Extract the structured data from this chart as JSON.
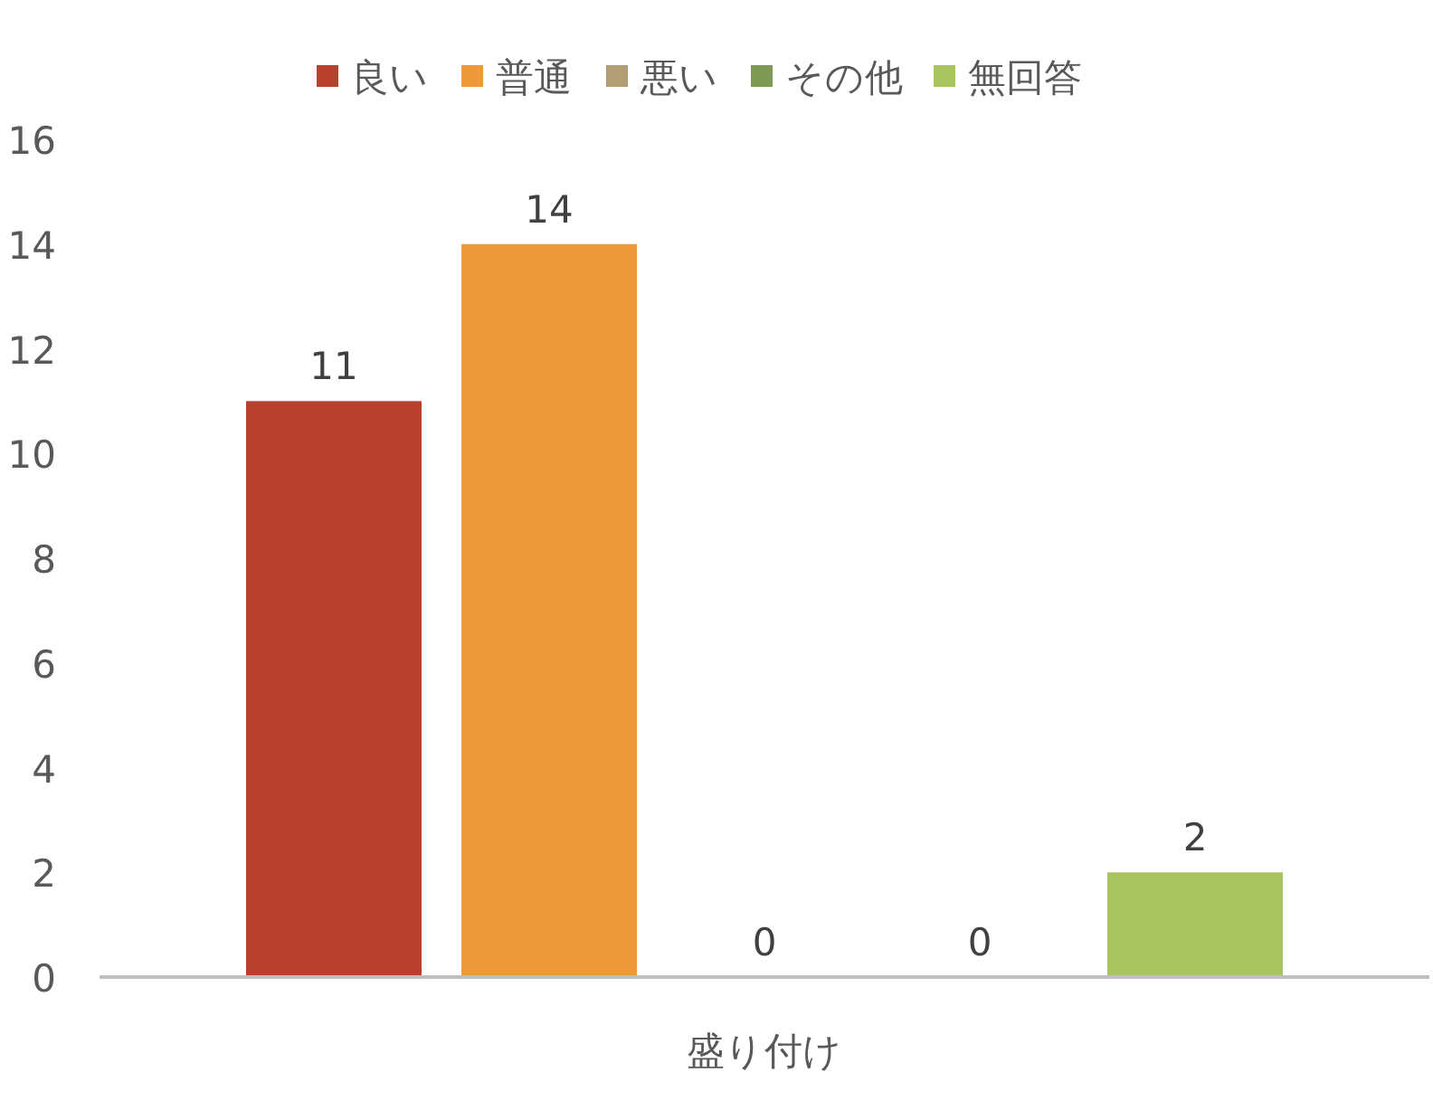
{
  "chart_data": {
    "type": "bar",
    "categories": [
      "盛り付け"
    ],
    "series": [
      {
        "name": "良い",
        "color": "#b8402e",
        "values": [
          11
        ]
      },
      {
        "name": "普通",
        "color": "#ee9a3a",
        "values": [
          14
        ]
      },
      {
        "name": "悪い",
        "color": "#b29d74",
        "values": [
          0
        ]
      },
      {
        "name": "その他",
        "color": "#7f9a56",
        "values": [
          0
        ]
      },
      {
        "name": "無回答",
        "color": "#a8c460",
        "values": [
          2
        ]
      }
    ],
    "ylim": [
      0,
      16
    ],
    "yticks": [
      0,
      2,
      4,
      6,
      8,
      10,
      12,
      14,
      16
    ],
    "data_labels": true,
    "legend": "top"
  }
}
